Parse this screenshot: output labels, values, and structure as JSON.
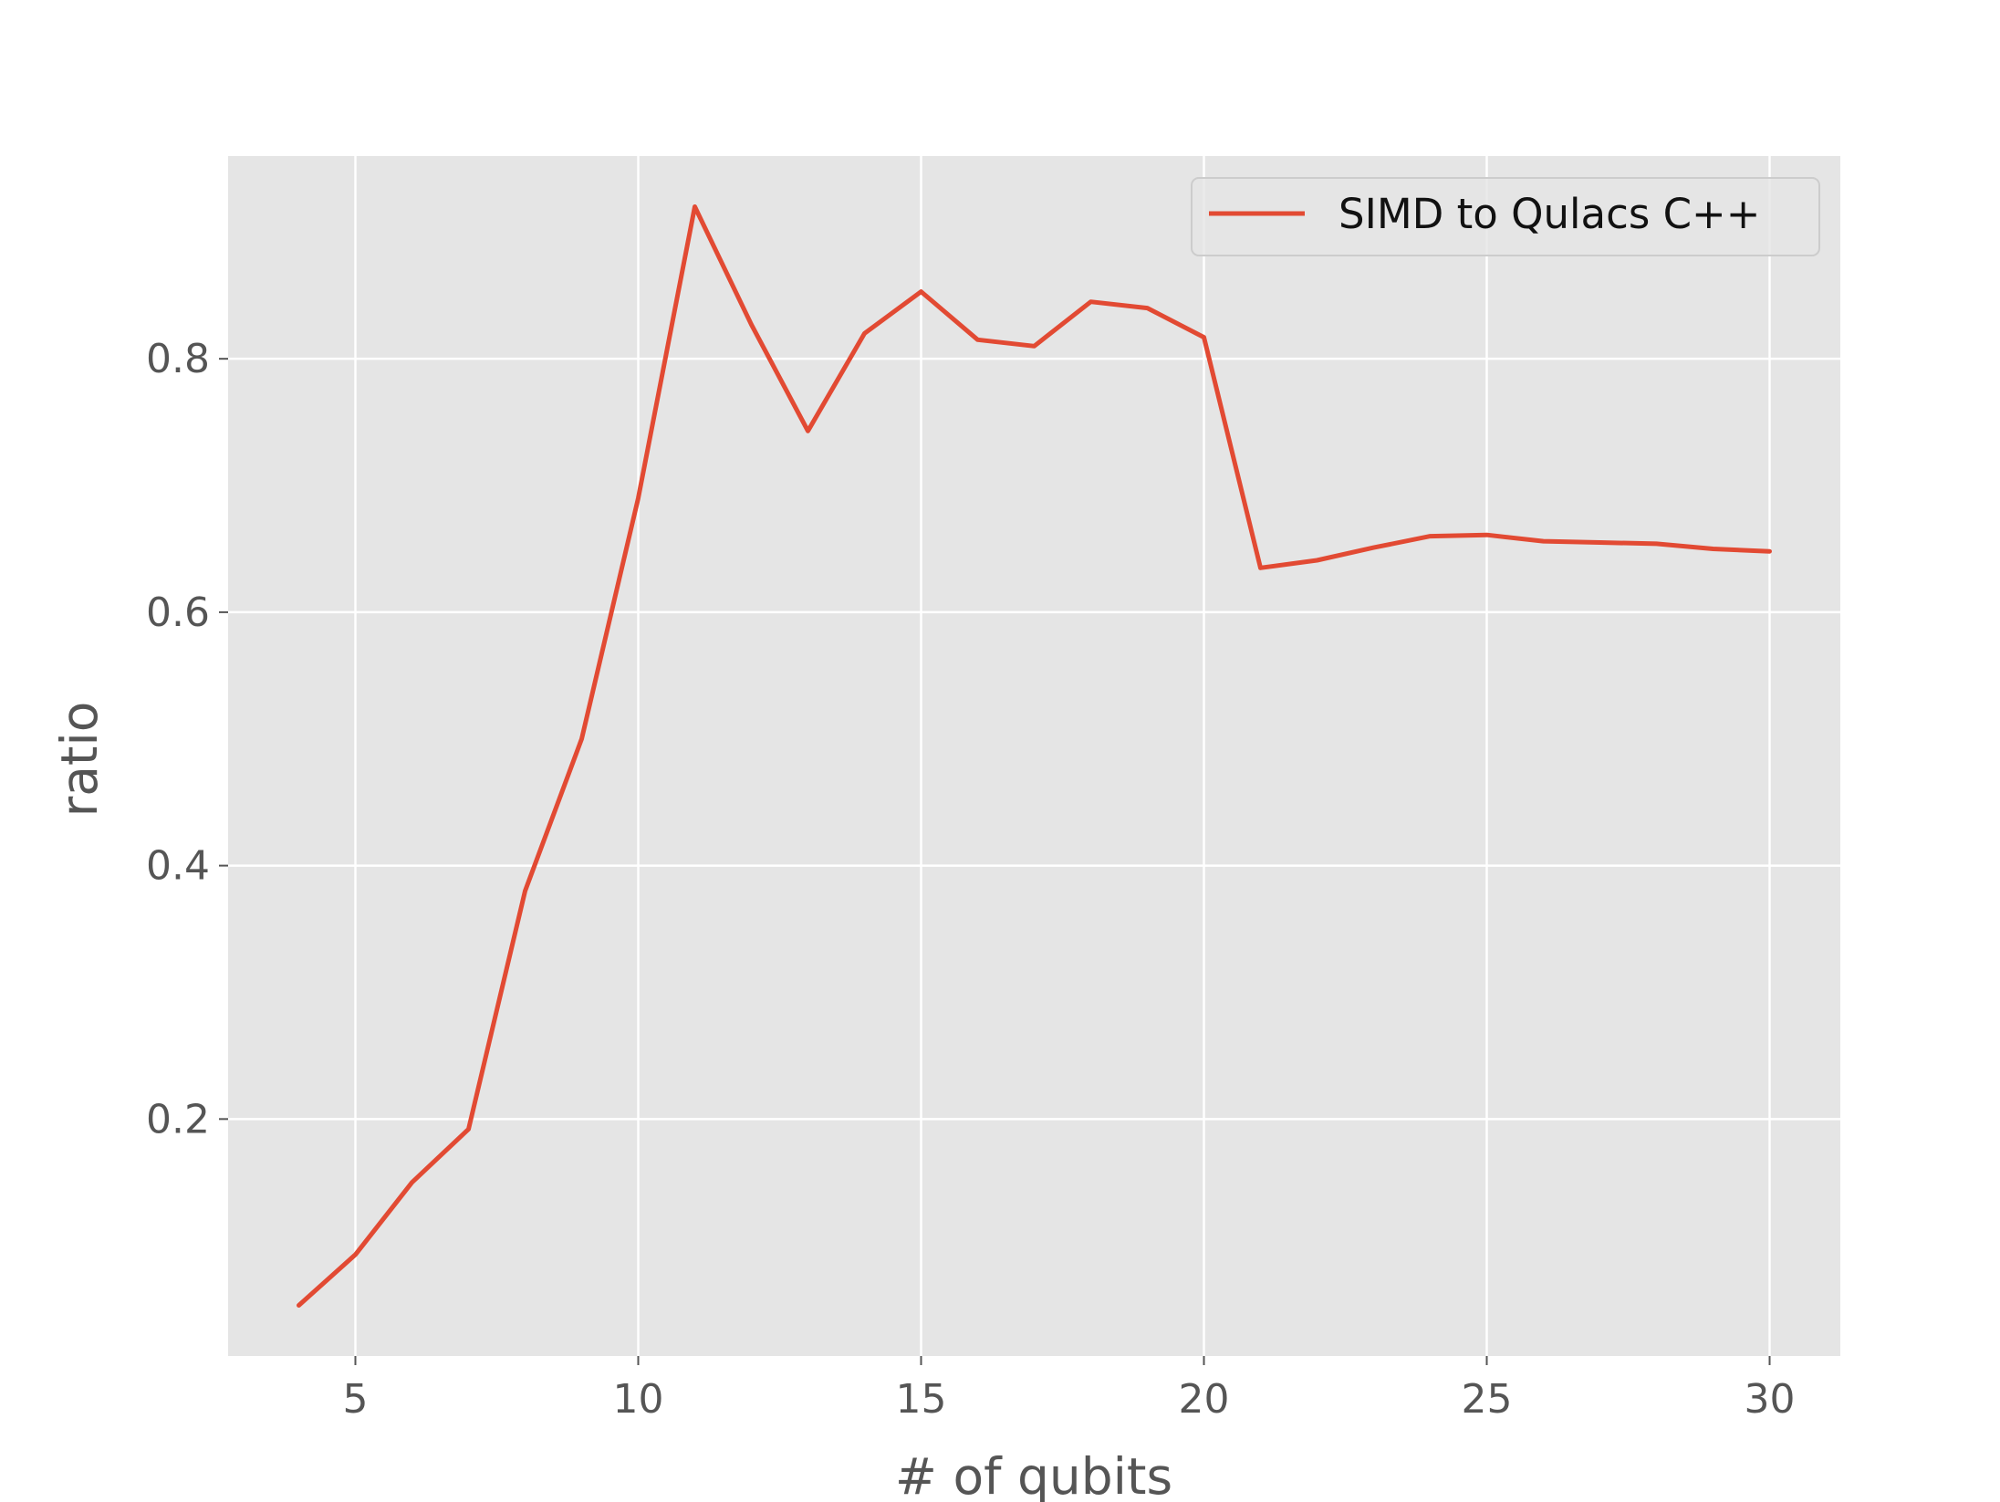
{
  "chart_data": {
    "type": "line",
    "title": "",
    "xlabel": "# of qubits",
    "ylabel": "ratio",
    "xlim": [
      2.75,
      31.25
    ],
    "ylim": [
      0.013,
      0.96
    ],
    "xticks": [
      5,
      10,
      15,
      20,
      25,
      30
    ],
    "xtick_labels": [
      "5",
      "10",
      "15",
      "20",
      "25",
      "30"
    ],
    "yticks": [
      0.2,
      0.4,
      0.6,
      0.8
    ],
    "ytick_labels": [
      "0.2",
      "0.4",
      "0.6",
      "0.8"
    ],
    "grid": true,
    "legend_position": "top-right",
    "series": [
      {
        "name": "SIMD to Qulacs C++",
        "color": "#E24A33",
        "x": [
          4,
          5,
          6,
          7,
          8,
          9,
          10,
          11,
          12,
          13,
          14,
          15,
          16,
          17,
          18,
          19,
          20,
          21,
          22,
          23,
          24,
          25,
          26,
          27,
          28,
          29,
          30
        ],
        "y": [
          0.053,
          0.093,
          0.15,
          0.192,
          0.38,
          0.5,
          0.69,
          0.92,
          0.827,
          0.743,
          0.82,
          0.853,
          0.815,
          0.81,
          0.845,
          0.84,
          0.817,
          0.635,
          0.641,
          0.651,
          0.66,
          0.661,
          0.656,
          0.655,
          0.654,
          0.65,
          0.648
        ]
      }
    ]
  }
}
